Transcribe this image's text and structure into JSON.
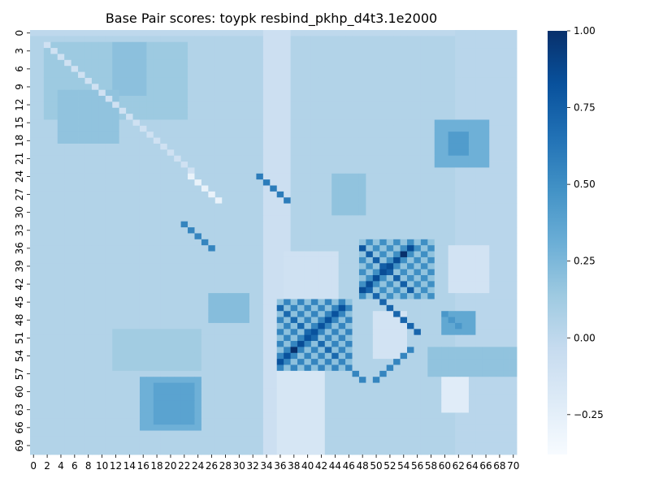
{
  "chart_data": {
    "type": "heatmap",
    "title": "Base Pair scores: toypk resbind_pkhp_d4t3.1e2000",
    "xlabel": "",
    "ylabel": "",
    "n": 71,
    "x_tick_labels": [
      "0",
      "2",
      "4",
      "6",
      "8",
      "10",
      "12",
      "14",
      "16",
      "18",
      "20",
      "22",
      "24",
      "26",
      "28",
      "30",
      "32",
      "34",
      "36",
      "38",
      "40",
      "42",
      "44",
      "46",
      "48",
      "50",
      "52",
      "54",
      "56",
      "58",
      "60",
      "62",
      "64",
      "66",
      "68",
      "70"
    ],
    "x_tick_values": [
      0,
      2,
      4,
      6,
      8,
      10,
      12,
      14,
      16,
      18,
      20,
      22,
      24,
      26,
      28,
      30,
      32,
      34,
      36,
      38,
      40,
      42,
      44,
      46,
      48,
      50,
      52,
      54,
      56,
      58,
      60,
      62,
      64,
      66,
      68,
      70
    ],
    "y_tick_labels": [
      "0",
      "3",
      "6",
      "9",
      "12",
      "15",
      "18",
      "21",
      "24",
      "27",
      "30",
      "33",
      "36",
      "39",
      "42",
      "45",
      "48",
      "51",
      "54",
      "57",
      "60",
      "63",
      "66",
      "69"
    ],
    "y_tick_values": [
      0,
      3,
      6,
      9,
      12,
      15,
      18,
      21,
      24,
      27,
      30,
      33,
      36,
      39,
      42,
      45,
      48,
      51,
      54,
      57,
      60,
      63,
      66,
      69
    ],
    "colorbar": {
      "tick_labels": [
        "1.00",
        "0.75",
        "0.50",
        "0.25",
        "0.00",
        "−0.25"
      ],
      "tick_values": [
        1.0,
        0.75,
        0.5,
        0.25,
        0.0,
        -0.25
      ],
      "vmin": -0.38,
      "vmax": 1.0,
      "colormap": "Blues"
    },
    "background_value": 0.0,
    "regions": [
      {
        "rows": [
          1,
          70
        ],
        "cols": [
          0,
          70
        ],
        "value": 0.05
      },
      {
        "rows": [
          2,
          14
        ],
        "cols": [
          2,
          22
        ],
        "value": 0.14
      },
      {
        "rows": [
          2,
          10
        ],
        "cols": [
          12,
          16
        ],
        "value": 0.2
      },
      {
        "rows": [
          10,
          18
        ],
        "cols": [
          4,
          12
        ],
        "value": 0.18
      },
      {
        "rows": [
          0,
          70
        ],
        "cols": [
          34,
          37
        ],
        "value": -0.08
      },
      {
        "rows": [
          0,
          70
        ],
        "cols": [
          62,
          70
        ],
        "value": 0.02
      },
      {
        "rows": [
          15,
          22
        ],
        "cols": [
          59,
          66
        ],
        "value": 0.3
      },
      {
        "rows": [
          17,
          20
        ],
        "cols": [
          61,
          63
        ],
        "value": 0.42
      },
      {
        "rows": [
          24,
          30
        ],
        "cols": [
          44,
          48
        ],
        "value": 0.18
      },
      {
        "rows": [
          35,
          44
        ],
        "cols": [
          48,
          58
        ],
        "value": 0.22
      },
      {
        "rows": [
          36,
          43
        ],
        "cols": [
          61,
          66
        ],
        "value": -0.12
      },
      {
        "rows": [
          37,
          44
        ],
        "cols": [
          37,
          44
        ],
        "value": -0.1
      },
      {
        "rows": [
          45,
          56
        ],
        "cols": [
          36,
          46
        ],
        "value": 0.25
      },
      {
        "rows": [
          47,
          54
        ],
        "cols": [
          50,
          54
        ],
        "value": -0.12
      },
      {
        "rows": [
          50,
          56
        ],
        "cols": [
          12,
          24
        ],
        "value": 0.12
      },
      {
        "rows": [
          53,
          57
        ],
        "cols": [
          58,
          70
        ],
        "value": 0.18
      },
      {
        "rows": [
          58,
          63
        ],
        "cols": [
          60,
          63
        ],
        "value": -0.22
      },
      {
        "rows": [
          58,
          66
        ],
        "cols": [
          16,
          24
        ],
        "value": 0.3
      },
      {
        "rows": [
          59,
          65
        ],
        "cols": [
          18,
          23
        ],
        "value": 0.38
      },
      {
        "rows": [
          57,
          70
        ],
        "cols": [
          36,
          42
        ],
        "value": -0.15
      },
      {
        "rows": [
          44,
          48
        ],
        "cols": [
          26,
          31
        ],
        "value": 0.22
      },
      {
        "rows": [
          47,
          50
        ],
        "cols": [
          60,
          64
        ],
        "value": 0.35
      }
    ],
    "checker_blocks": [
      {
        "rows": [
          35,
          44
        ],
        "cols": [
          48,
          58
        ],
        "high": 0.5,
        "low": 0.18
      },
      {
        "rows": [
          45,
          56
        ],
        "cols": [
          36,
          46
        ],
        "high": 0.55,
        "low": 0.2
      }
    ],
    "diagonals": [
      {
        "start_row": 2,
        "start_col": 2,
        "length": 22,
        "step": 1,
        "value": -0.1
      },
      {
        "start_row": 24,
        "start_col": 23,
        "length": 5,
        "step": 1,
        "value": -0.28
      },
      {
        "start_row": 36,
        "start_col": 48,
        "length": 8,
        "step": 1,
        "value": 0.75
      },
      {
        "start_row": 43,
        "start_col": 49,
        "length": 8,
        "step": 1,
        "value": 0.72
      },
      {
        "start_row": 36,
        "start_col": 55,
        "length": 8,
        "step": -1,
        "value": 0.85
      },
      {
        "start_row": 46,
        "start_col": 45,
        "length": 10,
        "step": -1,
        "value": 0.82
      },
      {
        "start_row": 46,
        "start_col": 36,
        "length": 9,
        "step": 1,
        "value": 0.7
      },
      {
        "start_row": 24,
        "start_col": 33,
        "length": 5,
        "step": 1,
        "value": 0.6
      },
      {
        "start_row": 32,
        "start_col": 22,
        "length": 5,
        "step": 1,
        "value": 0.55
      },
      {
        "start_row": 55,
        "start_col": 45,
        "length": 4,
        "step": 1,
        "value": 0.55
      },
      {
        "start_row": 53,
        "start_col": 55,
        "length": 6,
        "step": -1,
        "value": 0.55
      },
      {
        "start_row": 47,
        "start_col": 60,
        "length": 3,
        "step": 1,
        "value": 0.45
      }
    ],
    "cells": [
      {
        "row": 37,
        "col": 54,
        "value": 1.0
      },
      {
        "row": 53,
        "col": 38,
        "value": 1.0
      },
      {
        "row": 38,
        "col": 53,
        "value": 0.85
      },
      {
        "row": 52,
        "col": 39,
        "value": 0.85
      },
      {
        "row": 36,
        "col": 48,
        "value": 0.8
      }
    ]
  }
}
